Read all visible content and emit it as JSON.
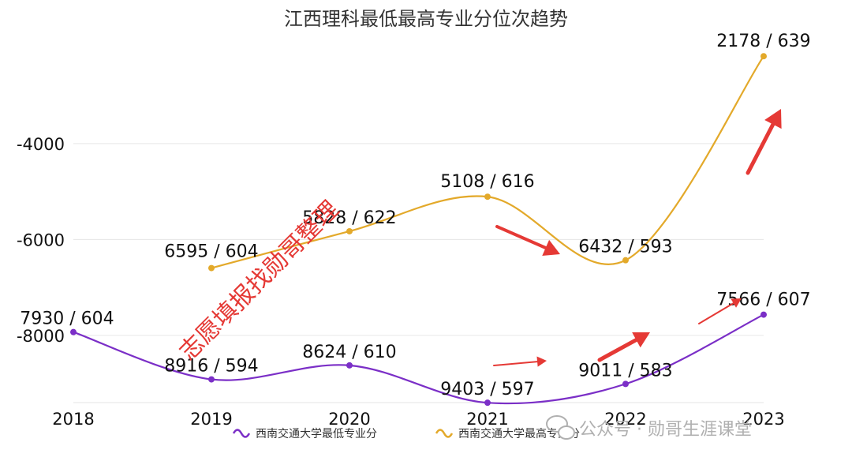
{
  "chart_data": {
    "type": "line",
    "title": "江西理科最低最高专业分位次趋势",
    "categories": [
      "2018",
      "2019",
      "2020",
      "2021",
      "2022",
      "2023"
    ],
    "y_ticks": [
      "-4000",
      "-6000",
      "-8000"
    ],
    "ylim": [
      -9400,
      -1500
    ],
    "grid": true,
    "legend_position": "bottom",
    "series": [
      {
        "name": "西南交通大学最低专业分",
        "color": "#7b2fc7",
        "ranks": [
          7930,
          8916,
          8624,
          9403,
          9011,
          7566
        ],
        "scores": [
          604,
          594,
          610,
          597,
          583,
          607
        ],
        "labels": [
          "7930 / 604",
          "8916 / 594",
          "8624 / 610",
          "9403 / 597",
          "9011 / 583",
          "7566 / 607"
        ]
      },
      {
        "name": "西南交通大学最高专业分",
        "color": "#e3a92a",
        "ranks": [
          null,
          6595,
          5828,
          5108,
          6432,
          2178
        ],
        "scores": [
          null,
          604,
          622,
          616,
          593,
          639
        ],
        "labels": [
          "",
          "6595 / 604",
          "5828 / 622",
          "5108 / 616",
          "6432 / 593",
          "2178 / 639"
        ]
      }
    ]
  },
  "annotations": {
    "watermark": "志愿填报找勋哥整理",
    "footer": "公众号 · 勋哥生涯课堂",
    "arrow_color": "#e53935"
  }
}
